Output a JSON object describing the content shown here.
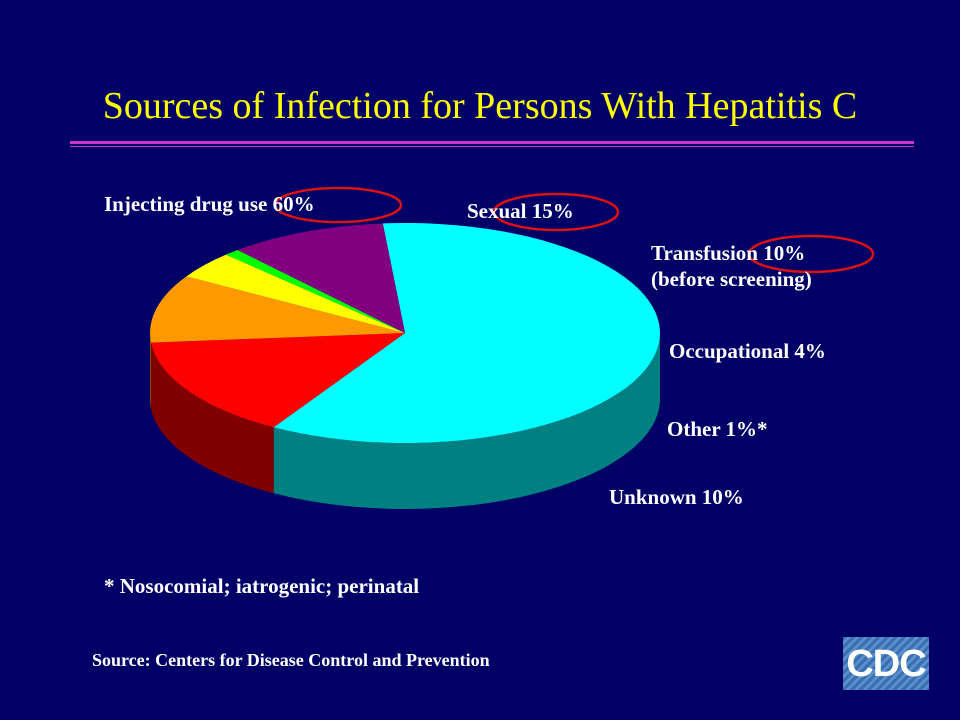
{
  "slide": {
    "title": "Sources of Infection for Persons With Hepatitis C",
    "footnote": "* Nosocomial; iatrogenic; perinatal",
    "source": "Source: Centers for Disease Control and Prevention",
    "logo_text": "CDC"
  },
  "colors": {
    "background": "#000066",
    "title": "#ffff00",
    "rule": "#cc33cc",
    "highlight_ellipse": "#dd1111"
  },
  "chart_data": {
    "type": "pie",
    "style": "3d",
    "title": "",
    "slices": [
      {
        "label": "Injecting drug use 60%",
        "value": 60,
        "color": "#00ffff",
        "circled": true
      },
      {
        "label": "Sexual 15%",
        "value": 15,
        "color": "#ff0000",
        "circled": true
      },
      {
        "label": "Transfusion 10%",
        "label_line2": "(before screening)",
        "value": 10,
        "color": "#ff9900",
        "circled": true
      },
      {
        "label": "Occupational 4%",
        "value": 4,
        "color": "#ffff00",
        "circled": false
      },
      {
        "label": "Other 1%*",
        "value": 1,
        "color": "#00ff00",
        "circled": false
      },
      {
        "label": "Unknown 10%",
        "value": 10,
        "color": "#800080",
        "circled": false
      }
    ]
  }
}
